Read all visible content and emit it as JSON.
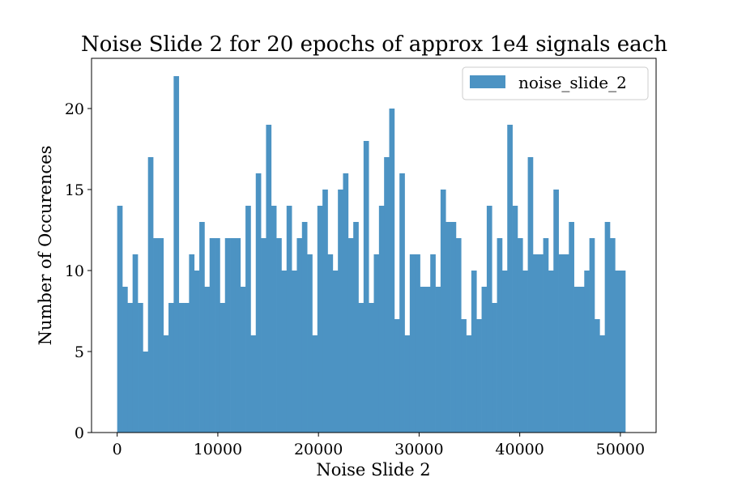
{
  "chart_data": {
    "type": "bar",
    "title": "Noise Slide 2 for 20 epochs of approx 1e4 signals each",
    "xlabel": "Noise Slide 2",
    "ylabel": "Number of Occurences",
    "xlim": [
      -2550,
      53550
    ],
    "ylim": [
      0,
      23.1
    ],
    "bin_start": 0,
    "bin_width": 510,
    "xticks": [
      0,
      10000,
      20000,
      30000,
      40000,
      50000
    ],
    "xtick_labels": [
      "0",
      "10000",
      "20000",
      "30000",
      "40000",
      "50000"
    ],
    "yticks": [
      0,
      5,
      10,
      15,
      20
    ],
    "ytick_labels": [
      "0",
      "5",
      "10",
      "15",
      "20"
    ],
    "grid": false,
    "legend_position": "top-right",
    "bar_color": "#4c93c3",
    "series": [
      {
        "name": "noise_slide_2",
        "values": [
          14,
          9,
          8,
          11,
          8,
          5,
          17,
          12,
          12,
          6,
          8,
          22,
          8,
          8,
          11,
          10,
          13,
          9,
          12,
          12,
          8,
          12,
          12,
          12,
          9,
          14,
          6,
          16,
          12,
          19,
          14,
          12,
          10,
          14,
          10,
          12,
          13,
          11,
          6,
          14,
          15,
          11,
          10,
          15,
          16,
          12,
          13,
          8,
          18,
          8,
          11,
          14,
          17,
          20,
          7,
          16,
          6,
          11,
          11,
          9,
          9,
          11,
          9,
          15,
          13,
          13,
          12,
          7,
          6,
          10,
          7,
          9,
          14,
          8,
          12,
          10,
          19,
          14,
          12,
          10,
          17,
          11,
          11,
          12,
          10,
          15,
          11,
          11,
          13,
          9,
          9,
          10,
          12,
          7,
          6,
          13,
          12,
          10,
          10
        ]
      }
    ]
  }
}
